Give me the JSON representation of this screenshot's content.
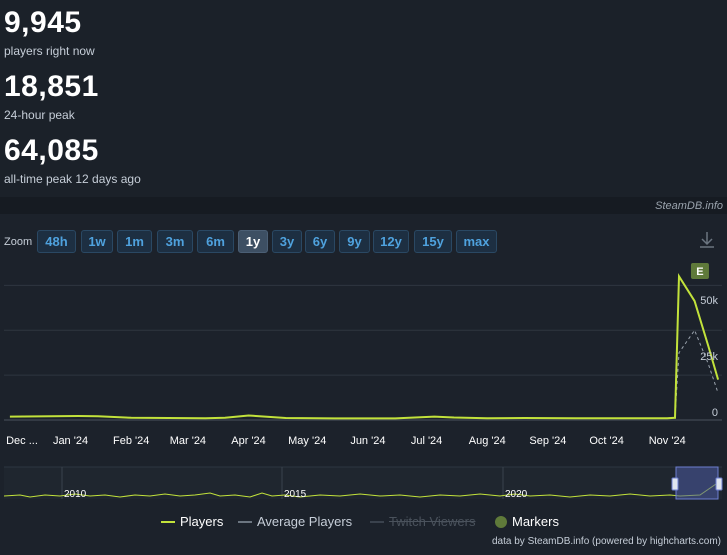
{
  "stats": {
    "current": {
      "value": "9,945",
      "label": "players right now"
    },
    "peak24": {
      "value": "18,851",
      "label": "24-hour peak"
    },
    "alltime": {
      "value": "64,085",
      "label": "all-time peak 12 days ago"
    }
  },
  "credit_top": "SteamDB.info",
  "zoom": {
    "label": "Zoom",
    "buttons": [
      "48h",
      "1w",
      "1m",
      "3m",
      "6m",
      "1y",
      "3y",
      "6y",
      "9y",
      "12y",
      "15y",
      "max"
    ],
    "active": "1y"
  },
  "marker_label": "E",
  "navigator_labels": [
    "2010",
    "2015",
    "2020"
  ],
  "legend": {
    "players": "Players",
    "average": "Average Players",
    "twitch": "Twitch Viewers",
    "markers": "Markers"
  },
  "footer_credit": "data by SteamDB.info (powered by highcharts.com)",
  "colors": {
    "players": "#c2e23b",
    "average": "#9aa3ad",
    "markers": "#5f7a3a",
    "background": "#1b2129",
    "zoom_text": "#4fa2de"
  },
  "chart_data": {
    "type": "line",
    "x_labels": [
      "Dec ...",
      "Jan '24",
      "Feb '24",
      "Mar '24",
      "Apr '24",
      "May '24",
      "Jun '24",
      "Jul '24",
      "Aug '24",
      "Sep '24",
      "Oct '24",
      "Nov '24"
    ],
    "y_ticks": [
      "0",
      "25k",
      "50k"
    ],
    "ylim": [
      0,
      70000
    ],
    "series": [
      {
        "name": "Players",
        "x": [
          "2023-12-01",
          "2023-12-15",
          "2024-01-05",
          "2024-01-15",
          "2024-02-01",
          "2024-02-20",
          "2024-03-10",
          "2024-03-20",
          "2024-04-01",
          "2024-04-20",
          "2024-05-15",
          "2024-06-15",
          "2024-07-05",
          "2024-07-15",
          "2024-08-01",
          "2024-08-20",
          "2024-09-15",
          "2024-10-15",
          "2024-11-01",
          "2024-11-05",
          "2024-11-07",
          "2024-11-15",
          "2024-11-22",
          "2024-11-27"
        ],
        "y": [
          1500,
          1600,
          1800,
          1700,
          1000,
          900,
          800,
          1000,
          2000,
          900,
          700,
          700,
          1500,
          1100,
          800,
          900,
          800,
          800,
          800,
          1000,
          64085,
          53000,
          33000,
          18000
        ]
      },
      {
        "name": "Average Players",
        "x": [
          "2024-11-01",
          "2024-11-05",
          "2024-11-07",
          "2024-11-15",
          "2024-11-22",
          "2024-11-27"
        ],
        "y": [
          800,
          900,
          30000,
          40000,
          25000,
          12000
        ]
      }
    ],
    "markers": [
      {
        "x": "2024-11-07",
        "label": "E"
      }
    ],
    "navigator": {
      "years": [
        "2010",
        "2015",
        "2020"
      ]
    }
  }
}
